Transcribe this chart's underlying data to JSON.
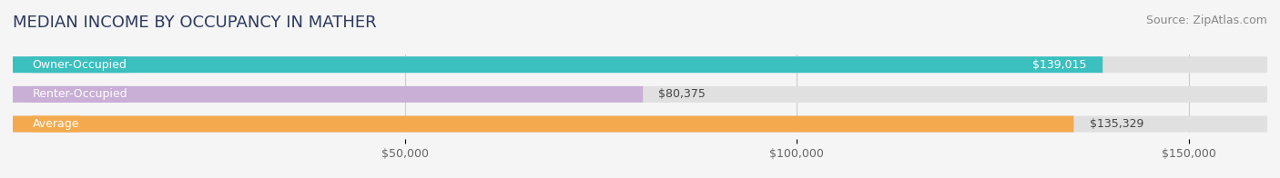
{
  "title": "MEDIAN INCOME BY OCCUPANCY IN MATHER",
  "source": "Source: ZipAtlas.com",
  "categories": [
    "Owner-Occupied",
    "Renter-Occupied",
    "Average"
  ],
  "values": [
    139015,
    80375,
    135329
  ],
  "bar_colors": [
    "#3bbfbf",
    "#c9aed6",
    "#f5a94e"
  ],
  "label_colors": [
    "#3bbfbf",
    "#c9aed6",
    "#f5a94e"
  ],
  "value_labels": [
    "$139,015",
    "$80,375",
    "$135,329"
  ],
  "xmax": 160000,
  "xticks": [
    0,
    50000,
    100000,
    150000
  ],
  "xtick_labels": [
    "$50,000",
    "$100,000",
    "$150,000"
  ],
  "background_color": "#f5f5f5",
  "bar_background": "#e8e8e8",
  "title_color": "#2d3a5e",
  "source_color": "#888888",
  "title_fontsize": 13,
  "source_fontsize": 9,
  "label_fontsize": 9,
  "value_fontsize": 9,
  "tick_fontsize": 9,
  "bar_height": 0.55
}
